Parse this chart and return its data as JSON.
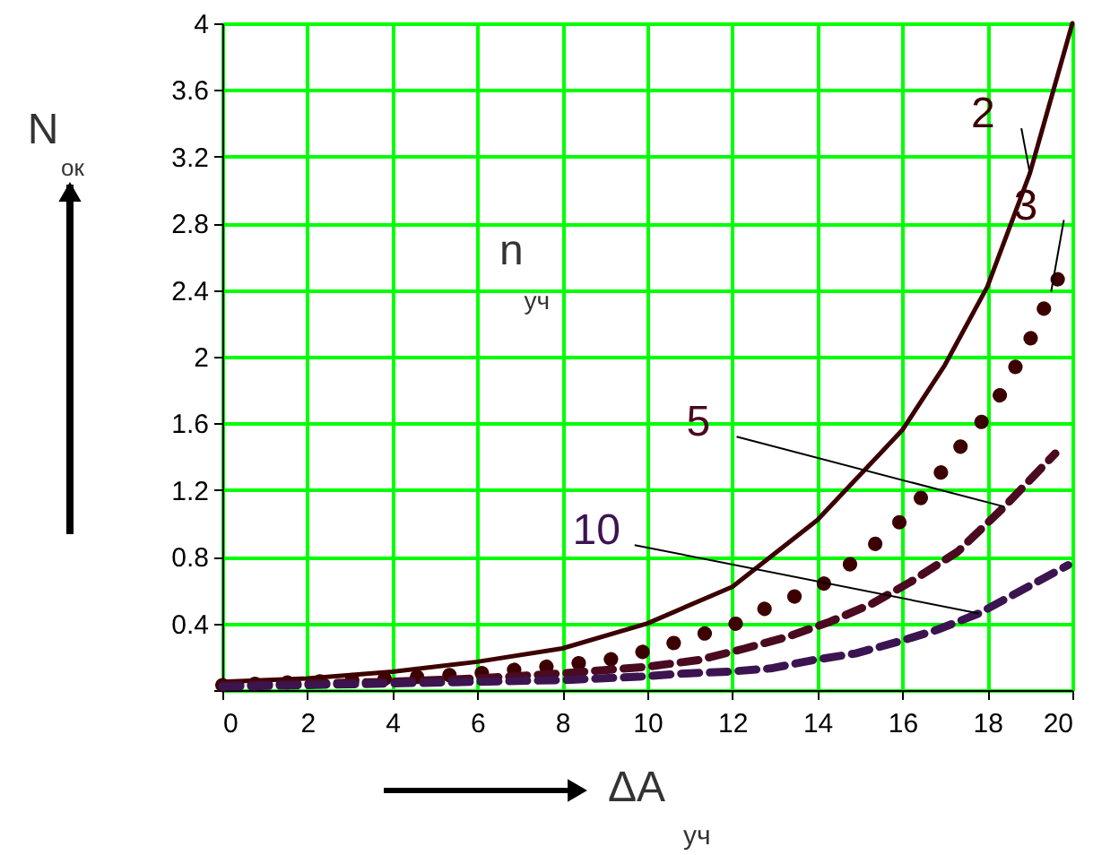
{
  "chart_data": {
    "type": "line",
    "xlabel": "ΔA$_{уч}$",
    "ylabel": "N$_{ок}$",
    "annotations": [
      "n$_{уч}$"
    ],
    "xlim": [
      0,
      20
    ],
    "xticks": [
      0,
      2,
      4,
      6,
      8,
      10,
      12,
      14,
      16,
      18,
      20
    ],
    "ylim": [
      0,
      4
    ],
    "yticks": [
      {
        "value": 0,
        "label": null
      },
      0.4,
      0.8,
      1.2,
      1.6,
      2,
      2.4,
      2.8,
      3.2,
      3.6,
      4
    ],
    "grid": true,
    "legend": "top right",
    "series": [
      {
        "name": "2",
        "color": "#3c0000",
        "line_style": "solid",
        "x": [
          0,
          2,
          4,
          6,
          8,
          10,
          12,
          14,
          16,
          17,
          18,
          19,
          20
        ],
        "values": [
          0.05,
          0.07,
          0.11,
          0.17,
          0.25,
          0.4,
          0.62,
          1.02,
          1.56,
          1.95,
          2.42,
          3.1,
          4.0
        ]
      },
      {
        "name": "3",
        "color": "#3c0000",
        "line_style": "dotted",
        "x": [
          0,
          2,
          4,
          6,
          8,
          9.3,
          10.2,
          11.1,
          12.1,
          13,
          14,
          14.9,
          15.8,
          16.6,
          17.3,
          18.1,
          18.6,
          19.1,
          19.5,
          20
        ],
        "values": [
          0.03,
          0.05,
          0.07,
          0.1,
          0.15,
          0.19,
          0.25,
          0.32,
          0.4,
          0.52,
          0.61,
          0.78,
          0.97,
          1.2,
          1.44,
          1.68,
          1.91,
          2.15,
          2.39,
          2.63
        ]
      },
      {
        "name": "5",
        "color": "#4a0a20",
        "line_style": "dashed",
        "x": [
          0,
          2,
          4,
          6,
          8,
          10,
          11.2,
          12.3,
          13.3,
          14.3,
          15.3,
          16.2,
          17.3,
          18.4,
          19.6
        ],
        "values": [
          0.03,
          0.04,
          0.05,
          0.07,
          0.1,
          0.14,
          0.18,
          0.25,
          0.32,
          0.41,
          0.52,
          0.65,
          0.83,
          1.1,
          1.42
        ]
      },
      {
        "name": "10",
        "color": "#3c1450",
        "line_style": "dashed",
        "x": [
          0,
          2,
          4,
          6,
          8,
          9.8,
          10.9,
          11.9,
          12.9,
          13.9,
          14.9,
          15.9,
          16.8,
          17.8,
          19.9
        ],
        "values": [
          0.02,
          0.03,
          0.04,
          0.05,
          0.06,
          0.08,
          0.1,
          0.11,
          0.13,
          0.18,
          0.22,
          0.29,
          0.36,
          0.46,
          0.75
        ]
      }
    ]
  }
}
